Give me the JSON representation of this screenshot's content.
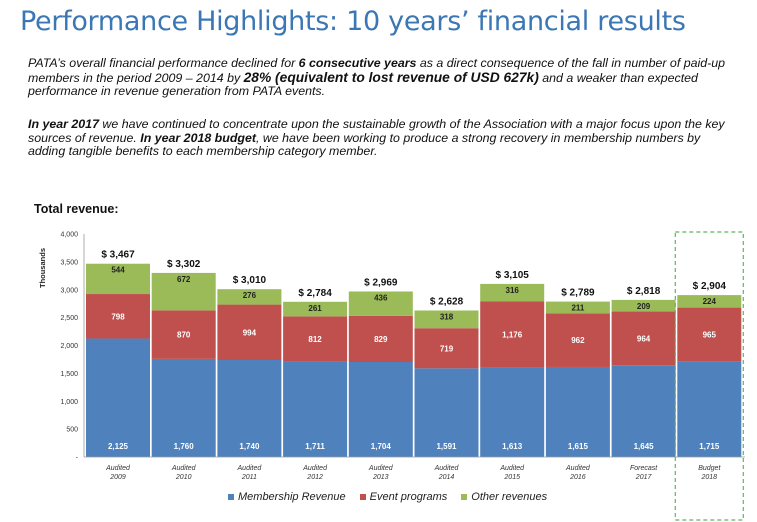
{
  "page": {
    "title": "Performance Highlights: 10 years’ financial results",
    "p1": {
      "t1": "PATA’s overall financial performance declined for ",
      "b1": "6 consecutive years",
      "t2": " as a direct consequence of the fall in number of paid-up members in the period 2009 – 2014 by ",
      "b2": "28% (equivalent to lost revenue of USD 627k)",
      "t3": " and a weaker than expected performance in revenue generation from PATA events."
    },
    "p2": {
      "b1": "In year 2017",
      "t1": " we have continued to concentrate upon the sustainable growth of the Association with a major focus upon the key sources of revenue. ",
      "b2": "In year 2018 budget",
      "t2": ", we have been working to produce a strong recovery in membership numbers by adding tangible benefits to each membership category member."
    },
    "section_label": "Total revenue:"
  },
  "colors": {
    "membership": "#4f81bd",
    "events": "#c0504d",
    "other": "#9bbb59",
    "title": "#3b77b4",
    "highlight_border": "#5cb85c"
  },
  "chart_data": {
    "type": "bar",
    "stacked": true,
    "ylabel": "Thousands",
    "ylim": [
      0,
      4000
    ],
    "yticks": [
      "4,000",
      "3,500",
      "3,000",
      "2,500",
      "2,000",
      "1,500",
      "1,000",
      "500",
      "-"
    ],
    "categories": [
      [
        "Audited",
        "2009"
      ],
      [
        "Audited",
        "2010"
      ],
      [
        "Audited",
        "2011"
      ],
      [
        "Audited",
        "2012"
      ],
      [
        "Audited",
        "2013"
      ],
      [
        "Audited",
        "2014"
      ],
      [
        "Audited",
        "2015"
      ],
      [
        "Audited",
        "2016"
      ],
      [
        "Forecast",
        "2017"
      ],
      [
        "Budget",
        "2018"
      ]
    ],
    "totals": [
      "$ 3,467",
      "$ 3,302",
      "$ 3,010",
      "$ 2,784",
      "$ 2,969",
      "$ 2,628",
      "$ 3,105",
      "$ 2,789",
      "$ 2,818",
      "$ 2,904"
    ],
    "series": [
      {
        "name": "Membership Revenue",
        "values": [
          2125,
          1760,
          1740,
          1711,
          1704,
          1591,
          1613,
          1615,
          1645,
          1715
        ],
        "labels": [
          "2,125",
          "1,760",
          "1,740",
          "1,711",
          "1,704",
          "1,591",
          "1,613",
          "1,615",
          "1,645",
          "1,715"
        ]
      },
      {
        "name": "Event programs",
        "values": [
          798,
          870,
          994,
          812,
          829,
          719,
          1176,
          962,
          964,
          965
        ],
        "labels": [
          "798",
          "870",
          "994",
          "812",
          "829",
          "719",
          "1,176",
          "962",
          "964",
          "965"
        ]
      },
      {
        "name": "Other revenues",
        "values": [
          544,
          672,
          276,
          261,
          436,
          318,
          316,
          211,
          209,
          224
        ],
        "labels": [
          "544",
          "672",
          "276",
          "261",
          "436",
          "318",
          "316",
          "211",
          "209",
          "224"
        ]
      }
    ],
    "legend_position": "bottom",
    "highlight_category": "2018"
  }
}
